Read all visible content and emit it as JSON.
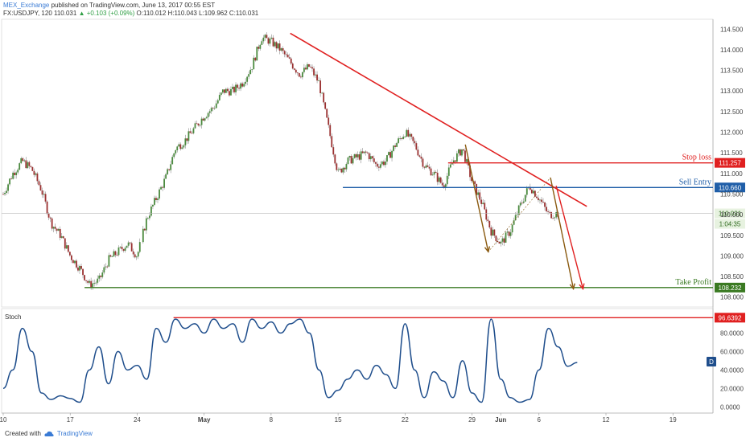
{
  "header": {
    "author": "MEX_Exchange",
    "published": "published on TradingView.com, June 13, 2017 00:55 EST",
    "symbol_line": "FX:USDJPY, 120  110.031",
    "change": "▲ +0.103 (+0.09%)",
    "ohlc": "O:110.012 H:110.043 L:109.962 C:110.031"
  },
  "footer": {
    "created_with": "Created with",
    "brand": "TradingView"
  },
  "colors": {
    "candle_up": "#4a8a3e",
    "candle_down": "#9a3030",
    "trend_red": "#e02020",
    "entry_blue": "#1f5ea8",
    "profit_green": "#3a7a22",
    "arrow_brown": "#8a5a10",
    "stoch_line": "#1f4e8c"
  },
  "chart_data": [
    {
      "type": "candlestick",
      "symbol": "FX:USDJPY",
      "interval": "120",
      "ylim": [
        107.8,
        114.7
      ],
      "y_ticks": [
        "114.500",
        "114.000",
        "113.500",
        "113.000",
        "112.500",
        "112.000",
        "111.500",
        "111.000",
        "110.500",
        "110.000",
        "109.500",
        "109.000",
        "108.500",
        "108.000"
      ],
      "x_ticks": [
        "10",
        "17",
        "24",
        "May",
        "8",
        "15",
        "22",
        "29",
        "Jun",
        "6",
        "12",
        "19"
      ],
      "x_tick_positions": [
        0,
        7,
        14,
        21,
        28,
        35,
        42,
        49,
        52,
        56,
        63,
        70
      ],
      "close_path": [
        [
          0,
          110.5
        ],
        [
          1,
          111.0
        ],
        [
          2,
          111.3
        ],
        [
          3,
          111.1
        ],
        [
          4,
          110.6
        ],
        [
          5,
          109.8
        ],
        [
          6,
          109.5
        ],
        [
          7,
          109.0
        ],
        [
          8,
          108.7
        ],
        [
          9,
          108.3
        ],
        [
          10,
          108.4
        ],
        [
          11,
          108.9
        ],
        [
          12,
          109.1
        ],
        [
          13,
          109.3
        ],
        [
          14,
          109.0
        ],
        [
          15,
          109.9
        ],
        [
          16,
          110.4
        ],
        [
          17,
          110.9
        ],
        [
          18,
          111.6
        ],
        [
          19,
          111.8
        ],
        [
          20,
          112.1
        ],
        [
          21,
          112.4
        ],
        [
          22,
          112.6
        ],
        [
          23,
          113.0
        ],
        [
          24,
          113.0
        ],
        [
          25,
          113.2
        ],
        [
          26,
          113.6
        ],
        [
          27,
          114.3
        ],
        [
          28,
          114.2
        ],
        [
          29,
          114.0
        ],
        [
          30,
          113.7
        ],
        [
          31,
          113.4
        ],
        [
          32,
          113.6
        ],
        [
          33,
          113.2
        ],
        [
          34,
          112.1
        ],
        [
          35,
          111.0
        ],
        [
          36,
          111.3
        ],
        [
          37,
          111.4
        ],
        [
          38,
          111.5
        ],
        [
          39,
          111.2
        ],
        [
          40,
          111.3
        ],
        [
          41,
          111.7
        ],
        [
          42,
          112.0
        ],
        [
          43,
          111.7
        ],
        [
          44,
          111.2
        ],
        [
          45,
          111.0
        ],
        [
          46,
          110.7
        ],
        [
          47,
          111.3
        ],
        [
          48,
          111.6
        ],
        [
          49,
          110.8
        ],
        [
          50,
          110.3
        ],
        [
          51,
          109.6
        ],
        [
          52,
          109.3
        ],
        [
          53,
          109.6
        ],
        [
          54,
          110.2
        ],
        [
          55,
          110.7
        ],
        [
          56,
          110.4
        ],
        [
          57,
          110.0
        ],
        [
          58,
          110.031
        ]
      ],
      "breaks": [
        14.5
      ],
      "levels": [
        {
          "label": "Stop loss",
          "value": 111.257,
          "tag": "111.257",
          "color": "#e02020",
          "x_from": 46.5
        },
        {
          "label": "Sell Entry",
          "value": 110.66,
          "tag": "110.660",
          "color": "#1f5ea8",
          "x_from": 35.5
        },
        {
          "label": "Take Profit",
          "value": 108.232,
          "tag": "108.232",
          "color": "#3a7a22",
          "x_from": 8.5
        }
      ],
      "current_price": {
        "value": 110.031,
        "tag": "110.031",
        "countdown": "1:04:35"
      },
      "trendline": [
        [
          30,
          114.4
        ],
        [
          61,
          110.2
        ]
      ],
      "arrows": [
        {
          "from": [
            48.3,
            111.7
          ],
          "to": [
            50.7,
            109.1
          ],
          "color": "#8a5a10"
        },
        {
          "from": [
            57.2,
            110.9
          ],
          "to": [
            59.6,
            108.2
          ],
          "color": "#8a5a10"
        },
        {
          "from": [
            57.8,
            110.7
          ],
          "to": [
            60.6,
            108.2
          ],
          "color": "#e02020"
        }
      ],
      "pivots": [
        [
          48.3,
          111.7
        ],
        [
          50.7,
          109.1
        ],
        [
          57.2,
          110.9
        ]
      ]
    },
    {
      "type": "line",
      "indicator": "Stoch",
      "ylim": [
        -5,
        103
      ],
      "y_ticks": [
        "80.0000",
        "60.0000",
        "40.0000",
        "20.0000",
        "0.0000"
      ],
      "level": {
        "value": 96.6392,
        "tag": "96.6392",
        "x_from": 17.8
      },
      "side_badge": "D",
      "values": [
        [
          0,
          20
        ],
        [
          1,
          40
        ],
        [
          2,
          85
        ],
        [
          3,
          60
        ],
        [
          4,
          15
        ],
        [
          5,
          8
        ],
        [
          6,
          12
        ],
        [
          7,
          9
        ],
        [
          8,
          5
        ],
        [
          9,
          40
        ],
        [
          10,
          65
        ],
        [
          11,
          25
        ],
        [
          12,
          60
        ],
        [
          13,
          40
        ],
        [
          14,
          45
        ],
        [
          15,
          30
        ],
        [
          16,
          85
        ],
        [
          17,
          70
        ],
        [
          18,
          95
        ],
        [
          19,
          85
        ],
        [
          20,
          90
        ],
        [
          21,
          80
        ],
        [
          22,
          95
        ],
        [
          23,
          85
        ],
        [
          24,
          90
        ],
        [
          25,
          70
        ],
        [
          26,
          95
        ],
        [
          27,
          85
        ],
        [
          28,
          92
        ],
        [
          29,
          80
        ],
        [
          30,
          90
        ],
        [
          31,
          95
        ],
        [
          32,
          80
        ],
        [
          33,
          40
        ],
        [
          34,
          10
        ],
        [
          35,
          18
        ],
        [
          36,
          30
        ],
        [
          37,
          40
        ],
        [
          38,
          30
        ],
        [
          39,
          45
        ],
        [
          40,
          35
        ],
        [
          41,
          20
        ],
        [
          42,
          90
        ],
        [
          43,
          40
        ],
        [
          44,
          10
        ],
        [
          45,
          38
        ],
        [
          46,
          28
        ],
        [
          47,
          10
        ],
        [
          48,
          50
        ],
        [
          49,
          15
        ],
        [
          50,
          5
        ],
        [
          51,
          95
        ],
        [
          52,
          30
        ],
        [
          53,
          10
        ],
        [
          54,
          5
        ],
        [
          55,
          8
        ],
        [
          56,
          40
        ],
        [
          57,
          85
        ],
        [
          58,
          65
        ],
        [
          59,
          44
        ],
        [
          60,
          48
        ]
      ]
    }
  ]
}
